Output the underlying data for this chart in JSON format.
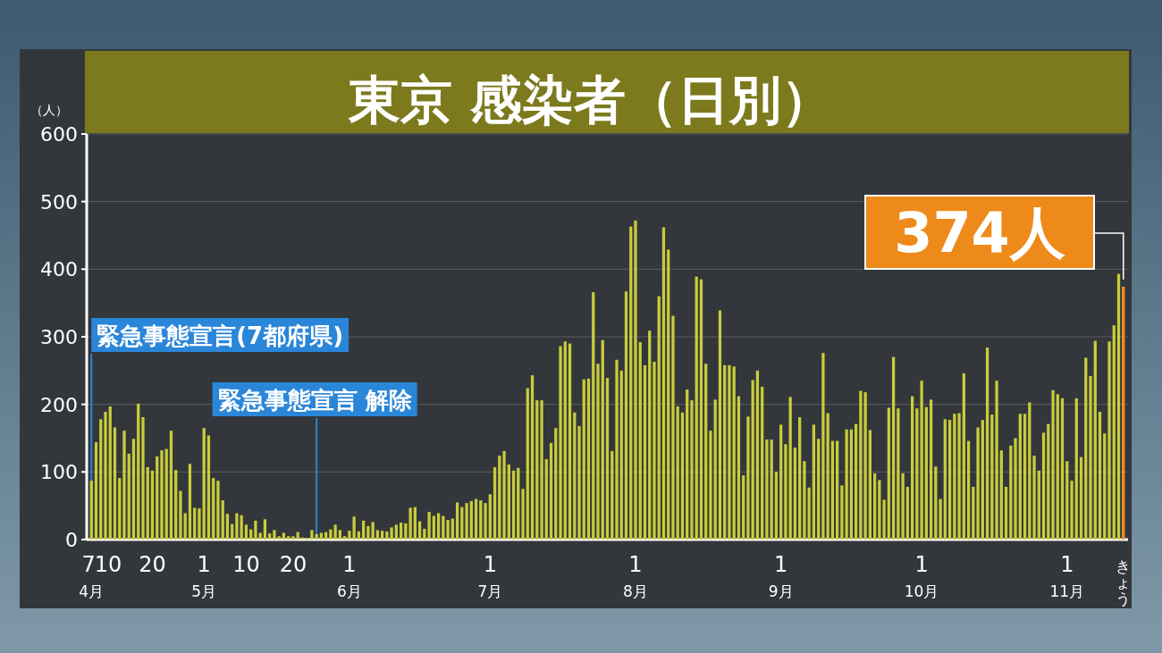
{
  "chart_data": {
    "type": "bar",
    "title": "東京 感染者（日別）",
    "ylabel": "（人）",
    "x": [
      "--04-07",
      "--04-08",
      "--04-09",
      "--04-10",
      "--04-11",
      "--04-12",
      "--04-13",
      "--04-14",
      "--04-15",
      "--04-16",
      "--04-17",
      "--04-18",
      "--04-19",
      "--04-20",
      "--04-21",
      "--04-22",
      "--04-23",
      "--04-24",
      "--04-25",
      "--04-26",
      "--04-27",
      "--04-28",
      "--04-29",
      "--04-30",
      "--05-01",
      "--05-02",
      "--05-03",
      "--05-04",
      "--05-05",
      "--05-06",
      "--05-07",
      "--05-08",
      "--05-09",
      "--05-10",
      "--05-11",
      "--05-12",
      "--05-13",
      "--05-14",
      "--05-15",
      "--05-16",
      "--05-17",
      "--05-18",
      "--05-19",
      "--05-20",
      "--05-21",
      "--05-22",
      "--05-23",
      "--05-24",
      "--05-25",
      "--05-26",
      "--05-27",
      "--05-28",
      "--05-29",
      "--05-30",
      "--05-31",
      "--06-01",
      "--06-02",
      "--06-03",
      "--06-04",
      "--06-05",
      "--06-06",
      "--06-07",
      "--06-08",
      "--06-09",
      "--06-10",
      "--06-11",
      "--06-12",
      "--06-13",
      "--06-14",
      "--06-15",
      "--06-16",
      "--06-17",
      "--06-18",
      "--06-19",
      "--06-20",
      "--06-21",
      "--06-22",
      "--06-23",
      "--06-24",
      "--06-25",
      "--06-26",
      "--06-27",
      "--06-28",
      "--06-29",
      "--06-30",
      "--07-01",
      "--07-02",
      "--07-03",
      "--07-04",
      "--07-05",
      "--07-06",
      "--07-07",
      "--07-08",
      "--07-09",
      "--07-10",
      "--07-11",
      "--07-12",
      "--07-13",
      "--07-14",
      "--07-15",
      "--07-16",
      "--07-17",
      "--07-18",
      "--07-19",
      "--07-20",
      "--07-21",
      "--07-22",
      "--07-23",
      "--07-24",
      "--07-25",
      "--07-26",
      "--07-27",
      "--07-28",
      "--07-29",
      "--07-30",
      "--07-31",
      "--08-01",
      "--08-02",
      "--08-03",
      "--08-04",
      "--08-05",
      "--08-06",
      "--08-07",
      "--08-08",
      "--08-09",
      "--08-10",
      "--08-11",
      "--08-12",
      "--08-13",
      "--08-14",
      "--08-15",
      "--08-16",
      "--08-17",
      "--08-18",
      "--08-19",
      "--08-20",
      "--08-21",
      "--08-22",
      "--08-23",
      "--08-24",
      "--08-25",
      "--08-26",
      "--08-27",
      "--08-28",
      "--08-29",
      "--08-30",
      "--08-31",
      "--09-01",
      "--09-02",
      "--09-03",
      "--09-04",
      "--09-05",
      "--09-06",
      "--09-07",
      "--09-08",
      "--09-09",
      "--09-10",
      "--09-11",
      "--09-12",
      "--09-13",
      "--09-14",
      "--09-15",
      "--09-16",
      "--09-17",
      "--09-18",
      "--09-19",
      "--09-20",
      "--09-21",
      "--09-22",
      "--09-23",
      "--09-24",
      "--09-25",
      "--09-26",
      "--09-27",
      "--09-28",
      "--09-29",
      "--09-30",
      "--10-01",
      "--10-02",
      "--10-03",
      "--10-04",
      "--10-05",
      "--10-06",
      "--10-07",
      "--10-08",
      "--10-09",
      "--10-10",
      "--10-11",
      "--10-12",
      "--10-13",
      "--10-14",
      "--10-15",
      "--10-16",
      "--10-17",
      "--10-18",
      "--10-19",
      "--10-20",
      "--10-21",
      "--10-22",
      "--10-23",
      "--10-24",
      "--10-25",
      "--10-26",
      "--10-27",
      "--10-28",
      "--10-29",
      "--10-30",
      "--10-31",
      "--11-01",
      "--11-02",
      "--11-03",
      "--11-04",
      "--11-05",
      "--11-06",
      "--11-07",
      "--11-08",
      "--11-09",
      "--11-10",
      "--11-11",
      "--11-12"
    ],
    "series": [
      {
        "color": "#c9cd3a",
        "values": [
          87,
          144,
          178,
          189,
          197,
          166,
          91,
          161,
          127,
          149,
          201,
          181,
          107,
          102,
          123,
          132,
          134,
          161,
          103,
          72,
          39,
          112,
          47,
          46,
          165,
          154,
          91,
          87,
          58,
          38,
          23,
          39,
          36,
          22,
          15,
          28,
          10,
          30,
          9,
          14,
          5,
          10,
          5,
          5,
          11,
          3,
          2,
          14,
          8,
          10,
          11,
          15,
          22,
          14,
          5,
          13,
          34,
          12,
          28,
          20,
          26,
          14,
          13,
          12,
          18,
          22,
          25,
          24,
          47,
          48,
          27,
          16,
          41,
          35,
          39,
          35,
          29,
          31,
          55,
          48,
          54,
          57,
          60,
          58,
          54,
          67,
          107,
          124,
          131,
          111,
          102,
          106,
          75,
          224,
          243,
          206,
          206,
          119,
          143,
          165,
          286,
          293,
          290,
          188,
          168,
          237,
          238,
          366,
          260,
          295,
          239,
          131,
          266,
          250,
          367,
          463,
          472,
          292,
          258,
          309,
          263,
          360,
          462,
          429,
          331,
          197,
          188,
          222,
          206,
          389,
          385,
          260,
          161,
          207,
          339,
          258,
          258,
          256,
          212,
          95,
          182,
          236,
          250,
          226,
          148,
          148,
          100,
          170,
          141,
          211,
          136,
          181,
          116,
          77,
          170,
          149,
          276,
          187,
          146,
          146,
          80,
          163,
          163,
          171,
          220,
          218,
          162,
          98,
          88,
          59,
          195,
          270,
          194,
          98,
          78,
          212,
          194,
          235,
          196,
          207,
          108,
          60,
          178,
          177,
          186,
          187,
          246,
          146,
          78,
          166,
          177,
          284,
          185,
          235,
          132,
          78,
          139,
          150,
          186,
          186,
          203,
          124,
          102,
          158,
          171,
          221,
          215,
          209,
          116,
          87,
          209,
          122,
          269,
          242,
          294,
          189,
          157,
          293,
          317,
          393
        ]
      },
      {
        "color": "#f0921e",
        "x": [
          "--11-13"
        ],
        "values": [
          374
        ]
      }
    ],
    "xlim": [
      "--04-06",
      "--11-14"
    ],
    "xticks": [
      {
        "value": "--04-07",
        "label": "7\n4月"
      },
      {
        "value": "--04-10",
        "label": "10"
      },
      {
        "value": "--04-20",
        "label": "20"
      },
      {
        "value": "--05-01",
        "label": "1\n5月"
      },
      {
        "value": "--05-10",
        "label": "10"
      },
      {
        "value": "--05-20",
        "label": "20"
      },
      {
        "value": "--06-01",
        "label": "1\n6月"
      },
      {
        "value": "--07-01",
        "label": "1\n7月"
      },
      {
        "value": "--08-01",
        "label": "1\n8月"
      },
      {
        "value": "--09-01",
        "label": "1\n9月"
      },
      {
        "value": "--10-01",
        "label": "1\n10月"
      },
      {
        "value": "--11-01",
        "label": "1\n11月"
      },
      {
        "value": "--11-13",
        "label": "きょう"
      }
    ],
    "ylim": [
      0,
      600
    ],
    "yticks": [
      0,
      100,
      200,
      300,
      400,
      500,
      600
    ],
    "grid": "y",
    "ref_lines": [
      {
        "axis": "x",
        "value": "--04-07",
        "label": "緊急事態宣言(7都府県)",
        "color": "#2a86d8"
      },
      {
        "axis": "x",
        "value": "--05-25",
        "label": "緊急事態宣言 解除",
        "color": "#2a86d8"
      }
    ],
    "annotations": [
      {
        "text": "374人",
        "x": "--11-13",
        "y": 374
      }
    ]
  }
}
